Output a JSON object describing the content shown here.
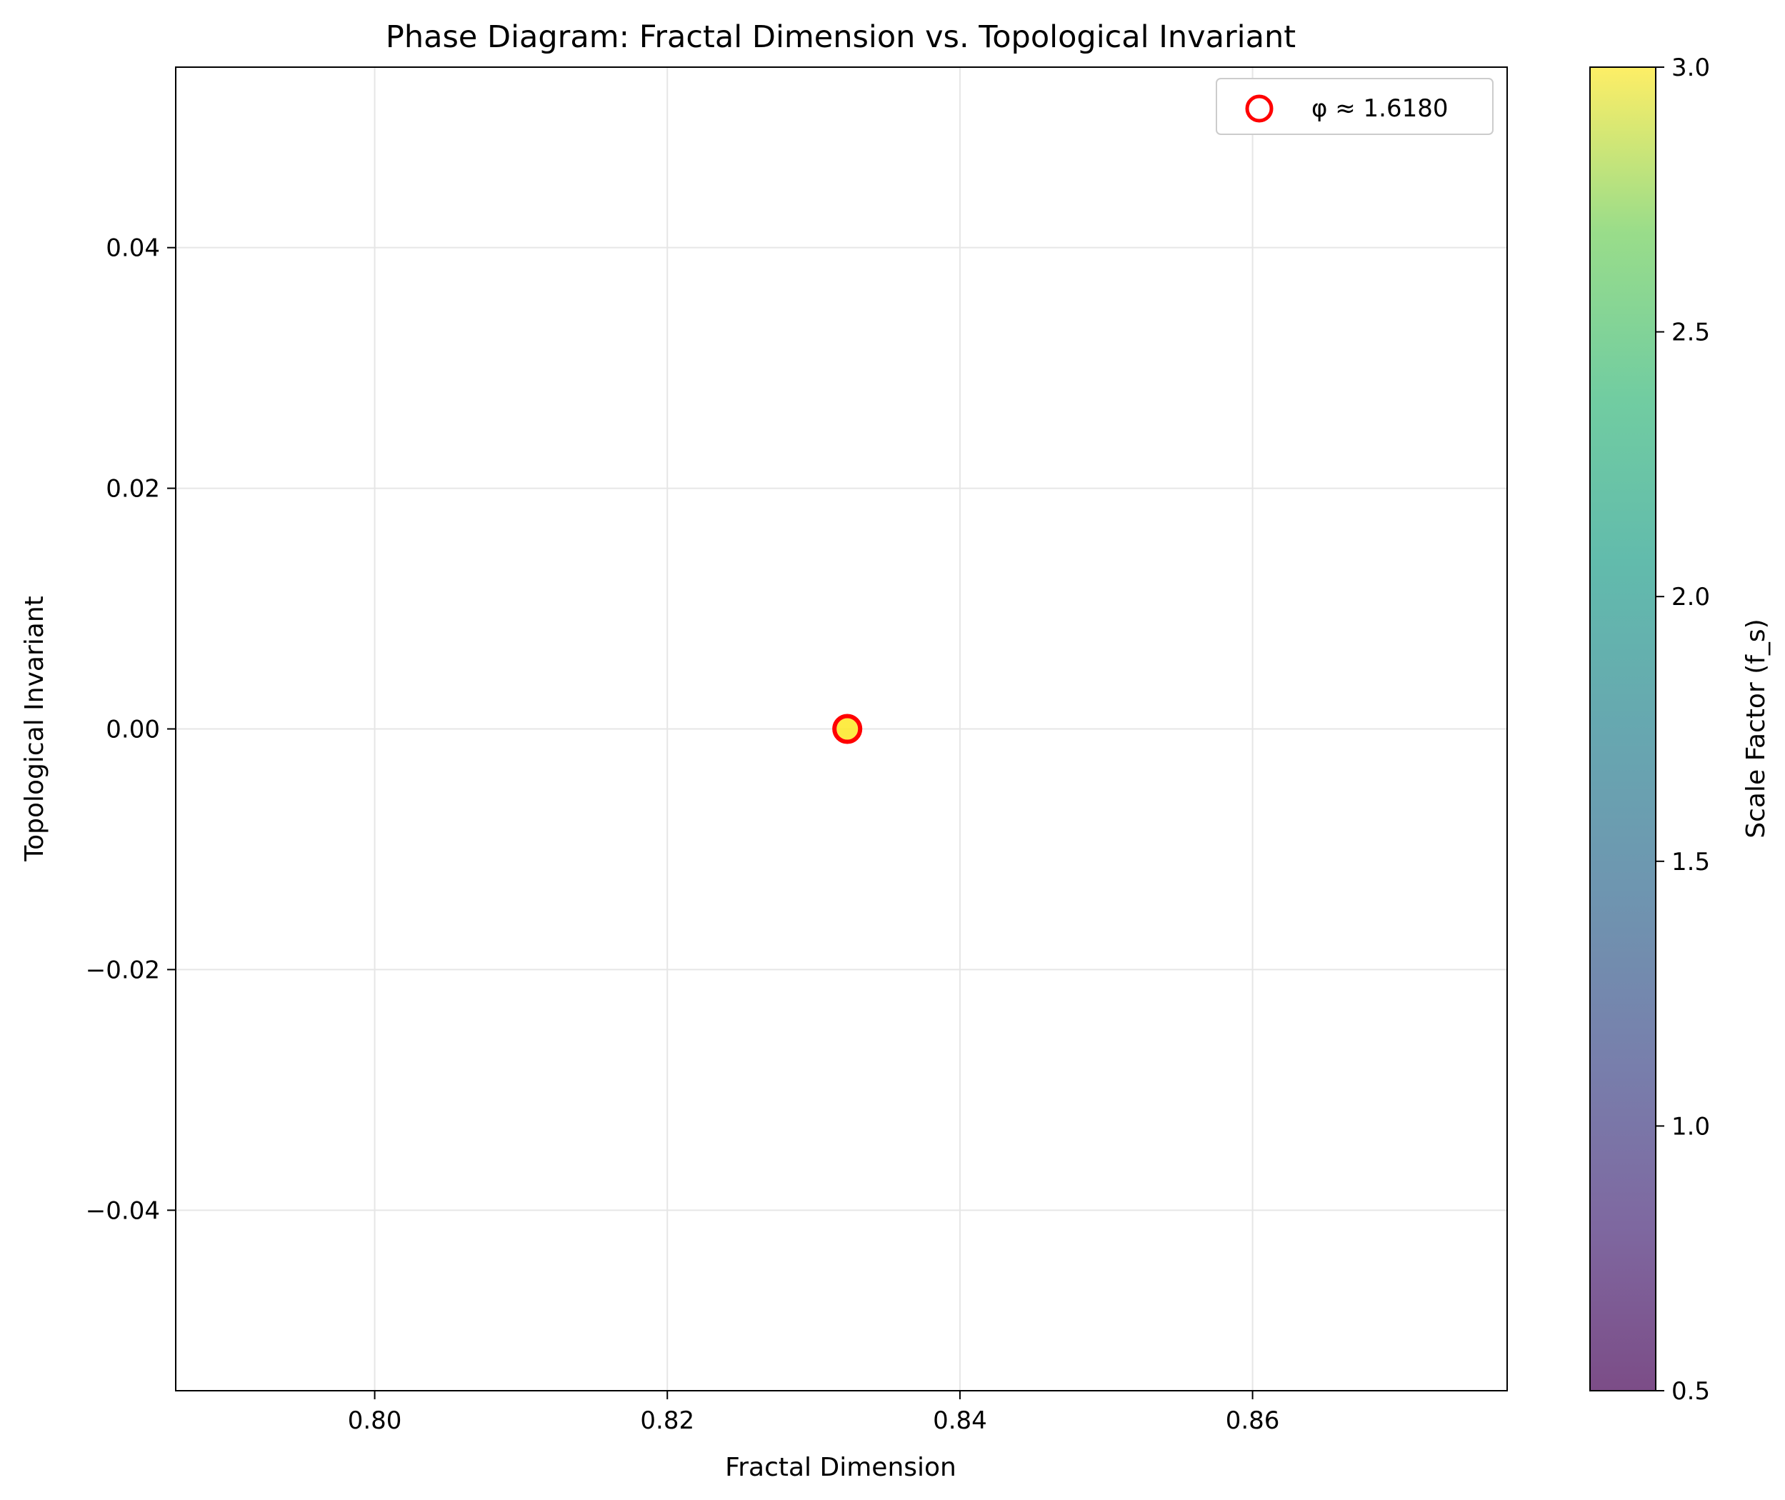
{
  "chart_data": {
    "type": "scatter",
    "title": "Phase Diagram: Fractal Dimension vs. Topological Invariant",
    "xlabel": "Fractal Dimension",
    "ylabel": "Topological Invariant",
    "xlim": [
      0.7864,
      0.8774
    ],
    "ylim": [
      -0.055,
      0.055
    ],
    "x_ticks": [
      0.8,
      0.82,
      0.84,
      0.86
    ],
    "x_tick_labels": [
      "0.80",
      "0.82",
      "0.84",
      "0.86"
    ],
    "y_ticks": [
      -0.04,
      -0.02,
      0.0,
      0.02,
      0.04
    ],
    "y_tick_labels": [
      "−0.04",
      "−0.02",
      "0.00",
      "0.02",
      "0.04"
    ],
    "grid": true,
    "points": [
      {
        "x": 0.8323,
        "y": 0.0,
        "scale_factor": 3.0
      }
    ],
    "highlight": {
      "x": 0.8323,
      "y": 0.0,
      "label": "φ ≈ 1.6180",
      "edge_color": "#ff0000"
    },
    "legend": {
      "placement": "top-right",
      "entries": [
        "φ ≈ 1.6180"
      ]
    },
    "colorbar": {
      "label": "Scale Factor (f_s)",
      "range": [
        0.5,
        3.0
      ],
      "ticks": [
        0.5,
        1.0,
        1.5,
        2.0,
        2.5,
        3.0
      ],
      "tick_labels": [
        "0.5",
        "1.0",
        "1.5",
        "2.0",
        "2.5",
        "3.0"
      ],
      "colormap": "viridis",
      "alpha": 0.7
    },
    "colors": {
      "grid": "#e6e6e6",
      "highlight_edge": "#ff0000",
      "point_fill": "#fde725"
    }
  }
}
